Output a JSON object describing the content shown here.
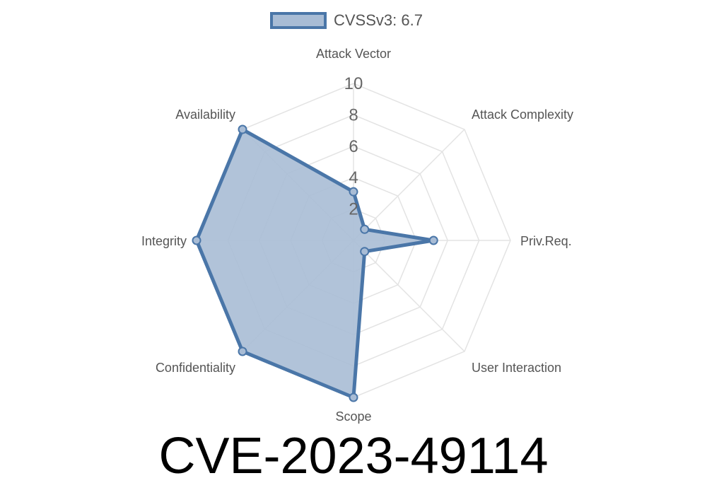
{
  "chart_data": {
    "type": "radar",
    "categories": [
      "Attack Vector",
      "Attack Complexity",
      "Priv.Req.",
      "User Interaction",
      "Scope",
      "Confidentiality",
      "Integrity",
      "Availability"
    ],
    "series": [
      {
        "name": "CVSSv3: 6.7",
        "values": [
          3.1,
          1.0,
          5.1,
          1.0,
          10,
          10,
          10,
          10
        ]
      }
    ],
    "radial_range": [
      0,
      10
    ],
    "radial_ticks": [
      "2",
      "4",
      "6",
      "8",
      "10"
    ],
    "grid": true,
    "legend_position": "top",
    "colors": {
      "line": "#4a76a8",
      "fill": "#a8bcd5",
      "grid": "#e3e3e3"
    }
  },
  "title": "CVE-2023-49114"
}
